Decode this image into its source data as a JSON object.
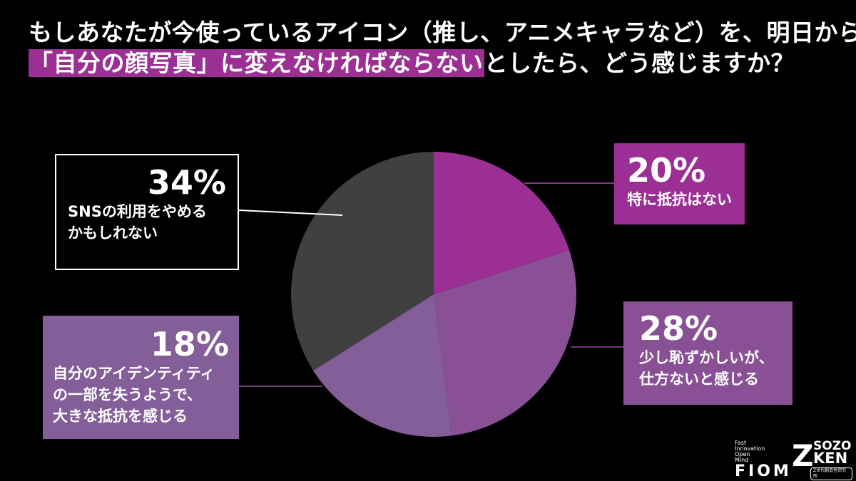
{
  "title": {
    "line1": "もしあなたが今使っているアイコン（推し、アニメキャラなど）を、明日から",
    "line2_highlight": "「自分の顔写真」に変えなければならない",
    "line2_rest": "としたら、どう感じますか？"
  },
  "colors": {
    "background": "#000000",
    "highlight": "#9b2f93",
    "slice_20": "#9b2f93",
    "slice_28": "#8a5096",
    "slice_18": "#835e99",
    "slice_34": "#404040"
  },
  "labels": {
    "s34": {
      "pct": "34%",
      "line1": "SNSの利用をやめる",
      "line2": "かもしれない"
    },
    "s20": {
      "pct": "20%",
      "line1": "特に抵抗はない"
    },
    "s28": {
      "pct": "28%",
      "line1": "少し恥ずかしいが、",
      "line2": "仕方ないと感じる"
    },
    "s18": {
      "pct": "18%",
      "line1": "自分のアイデンティティ",
      "line2": "の一部を失うようで、",
      "line3": "大きな抵抗を感じる"
    }
  },
  "logos": {
    "fiom_small": [
      "Fast",
      "Innovation",
      "Open",
      "Mind"
    ],
    "fiom": "FIOM",
    "zken_z": "Z",
    "zken_sozo": "SOZO",
    "zken_ken": "KEN",
    "zken_sub": "Z世代創造性研究所"
  },
  "chart_data": {
    "type": "pie",
    "title": "もしあなたが今使っているアイコン（推し、アニメキャラなど）を、明日から「自分の顔写真」に変えなければならないとしたら、どう感じますか？",
    "categories": [
      "特に抵抗はない",
      "少し恥ずかしいが、仕方ないと感じる",
      "自分のアイデンティティの一部を失うようで、大きな抵抗を感じる",
      "SNSの利用をやめるかもしれない"
    ],
    "values": [
      20,
      28,
      18,
      34
    ],
    "unit": "%",
    "start_angle": "12 o'clock, clockwise",
    "colors": [
      "#9b2f93",
      "#8a5096",
      "#835e99",
      "#404040"
    ],
    "legend": "callout boxes"
  }
}
